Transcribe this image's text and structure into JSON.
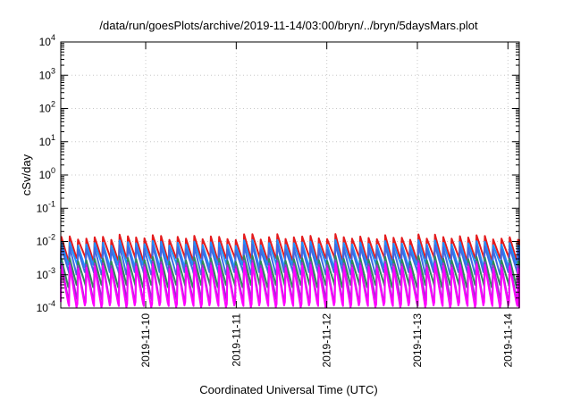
{
  "chart_data": {
    "type": "line",
    "title": "/data/run/goesPlots/archive/2019-11-14/03:00/bryn/../bryn/5daysMars.plot",
    "xlabel": "Coordinated Universal Time (UTC)",
    "ylabel": "cSv/day",
    "yscale": "log",
    "ylim": [
      0.0001,
      10000
    ],
    "xlim": [
      "2019-11-09T01:30:00Z",
      "2019-11-14T03:00:00Z"
    ],
    "grid": true,
    "legend": "none",
    "x_ticks": [
      "2019-11-10",
      "2019-11-11",
      "2019-11-12",
      "2019-11-13",
      "2019-11-14"
    ],
    "y_ticks": [
      {
        "value": 0.0001,
        "base": "10",
        "exp": "-4"
      },
      {
        "value": 0.001,
        "base": "10",
        "exp": "-3"
      },
      {
        "value": 0.01,
        "base": "10",
        "exp": "-2"
      },
      {
        "value": 0.1,
        "base": "10",
        "exp": "-1"
      },
      {
        "value": 1,
        "base": "10",
        "exp": "0"
      },
      {
        "value": 10,
        "base": "10",
        "exp": "1"
      },
      {
        "value": 100,
        "base": "10",
        "exp": "2"
      },
      {
        "value": 1000,
        "base": "10",
        "exp": "3"
      },
      {
        "value": 10000,
        "base": "10",
        "exp": "4"
      }
    ],
    "sawtooth_period_hours": 2.2,
    "series": [
      {
        "color": "#e41a1c",
        "peak": 0.0135,
        "trough": 0.0032
      },
      {
        "color": "#1e90ff",
        "peak": 0.009,
        "trough": 0.002
      },
      {
        "color": "#4169e1",
        "peak": 0.0065,
        "trough": 0.0012
      },
      {
        "color": "#2e8b57",
        "peak": 0.003,
        "trough": 0.0005
      },
      {
        "color": "#9932cc",
        "peak": 0.0022,
        "trough": 0.00018
      },
      {
        "color": "#ff00ff",
        "peak": 0.0018,
        "trough": 0.00012
      }
    ]
  }
}
